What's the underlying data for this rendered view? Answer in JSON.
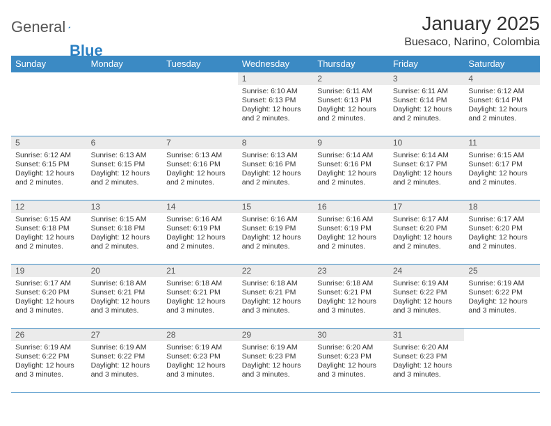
{
  "logo": {
    "general": "General",
    "blue": "Blue"
  },
  "title": "January 2025",
  "location": "Buesaco, Narino, Colombia",
  "colors": {
    "header_bg": "#3b8ac4",
    "header_text": "#ffffff",
    "daynum_bg": "#ebebeb",
    "border": "#3b8ac4",
    "text": "#333333",
    "logo_blue": "#2a7fc2"
  },
  "weekdays": [
    "Sunday",
    "Monday",
    "Tuesday",
    "Wednesday",
    "Thursday",
    "Friday",
    "Saturday"
  ],
  "weeks": [
    [
      null,
      null,
      null,
      {
        "d": "1",
        "sr": "Sunrise: 6:10 AM",
        "ss": "Sunset: 6:13 PM",
        "dl1": "Daylight: 12 hours",
        "dl2": "and 2 minutes."
      },
      {
        "d": "2",
        "sr": "Sunrise: 6:11 AM",
        "ss": "Sunset: 6:13 PM",
        "dl1": "Daylight: 12 hours",
        "dl2": "and 2 minutes."
      },
      {
        "d": "3",
        "sr": "Sunrise: 6:11 AM",
        "ss": "Sunset: 6:14 PM",
        "dl1": "Daylight: 12 hours",
        "dl2": "and 2 minutes."
      },
      {
        "d": "4",
        "sr": "Sunrise: 6:12 AM",
        "ss": "Sunset: 6:14 PM",
        "dl1": "Daylight: 12 hours",
        "dl2": "and 2 minutes."
      }
    ],
    [
      {
        "d": "5",
        "sr": "Sunrise: 6:12 AM",
        "ss": "Sunset: 6:15 PM",
        "dl1": "Daylight: 12 hours",
        "dl2": "and 2 minutes."
      },
      {
        "d": "6",
        "sr": "Sunrise: 6:13 AM",
        "ss": "Sunset: 6:15 PM",
        "dl1": "Daylight: 12 hours",
        "dl2": "and 2 minutes."
      },
      {
        "d": "7",
        "sr": "Sunrise: 6:13 AM",
        "ss": "Sunset: 6:16 PM",
        "dl1": "Daylight: 12 hours",
        "dl2": "and 2 minutes."
      },
      {
        "d": "8",
        "sr": "Sunrise: 6:13 AM",
        "ss": "Sunset: 6:16 PM",
        "dl1": "Daylight: 12 hours",
        "dl2": "and 2 minutes."
      },
      {
        "d": "9",
        "sr": "Sunrise: 6:14 AM",
        "ss": "Sunset: 6:16 PM",
        "dl1": "Daylight: 12 hours",
        "dl2": "and 2 minutes."
      },
      {
        "d": "10",
        "sr": "Sunrise: 6:14 AM",
        "ss": "Sunset: 6:17 PM",
        "dl1": "Daylight: 12 hours",
        "dl2": "and 2 minutes."
      },
      {
        "d": "11",
        "sr": "Sunrise: 6:15 AM",
        "ss": "Sunset: 6:17 PM",
        "dl1": "Daylight: 12 hours",
        "dl2": "and 2 minutes."
      }
    ],
    [
      {
        "d": "12",
        "sr": "Sunrise: 6:15 AM",
        "ss": "Sunset: 6:18 PM",
        "dl1": "Daylight: 12 hours",
        "dl2": "and 2 minutes."
      },
      {
        "d": "13",
        "sr": "Sunrise: 6:15 AM",
        "ss": "Sunset: 6:18 PM",
        "dl1": "Daylight: 12 hours",
        "dl2": "and 2 minutes."
      },
      {
        "d": "14",
        "sr": "Sunrise: 6:16 AM",
        "ss": "Sunset: 6:19 PM",
        "dl1": "Daylight: 12 hours",
        "dl2": "and 2 minutes."
      },
      {
        "d": "15",
        "sr": "Sunrise: 6:16 AM",
        "ss": "Sunset: 6:19 PM",
        "dl1": "Daylight: 12 hours",
        "dl2": "and 2 minutes."
      },
      {
        "d": "16",
        "sr": "Sunrise: 6:16 AM",
        "ss": "Sunset: 6:19 PM",
        "dl1": "Daylight: 12 hours",
        "dl2": "and 2 minutes."
      },
      {
        "d": "17",
        "sr": "Sunrise: 6:17 AM",
        "ss": "Sunset: 6:20 PM",
        "dl1": "Daylight: 12 hours",
        "dl2": "and 2 minutes."
      },
      {
        "d": "18",
        "sr": "Sunrise: 6:17 AM",
        "ss": "Sunset: 6:20 PM",
        "dl1": "Daylight: 12 hours",
        "dl2": "and 2 minutes."
      }
    ],
    [
      {
        "d": "19",
        "sr": "Sunrise: 6:17 AM",
        "ss": "Sunset: 6:20 PM",
        "dl1": "Daylight: 12 hours",
        "dl2": "and 3 minutes."
      },
      {
        "d": "20",
        "sr": "Sunrise: 6:18 AM",
        "ss": "Sunset: 6:21 PM",
        "dl1": "Daylight: 12 hours",
        "dl2": "and 3 minutes."
      },
      {
        "d": "21",
        "sr": "Sunrise: 6:18 AM",
        "ss": "Sunset: 6:21 PM",
        "dl1": "Daylight: 12 hours",
        "dl2": "and 3 minutes."
      },
      {
        "d": "22",
        "sr": "Sunrise: 6:18 AM",
        "ss": "Sunset: 6:21 PM",
        "dl1": "Daylight: 12 hours",
        "dl2": "and 3 minutes."
      },
      {
        "d": "23",
        "sr": "Sunrise: 6:18 AM",
        "ss": "Sunset: 6:21 PM",
        "dl1": "Daylight: 12 hours",
        "dl2": "and 3 minutes."
      },
      {
        "d": "24",
        "sr": "Sunrise: 6:19 AM",
        "ss": "Sunset: 6:22 PM",
        "dl1": "Daylight: 12 hours",
        "dl2": "and 3 minutes."
      },
      {
        "d": "25",
        "sr": "Sunrise: 6:19 AM",
        "ss": "Sunset: 6:22 PM",
        "dl1": "Daylight: 12 hours",
        "dl2": "and 3 minutes."
      }
    ],
    [
      {
        "d": "26",
        "sr": "Sunrise: 6:19 AM",
        "ss": "Sunset: 6:22 PM",
        "dl1": "Daylight: 12 hours",
        "dl2": "and 3 minutes."
      },
      {
        "d": "27",
        "sr": "Sunrise: 6:19 AM",
        "ss": "Sunset: 6:22 PM",
        "dl1": "Daylight: 12 hours",
        "dl2": "and 3 minutes."
      },
      {
        "d": "28",
        "sr": "Sunrise: 6:19 AM",
        "ss": "Sunset: 6:23 PM",
        "dl1": "Daylight: 12 hours",
        "dl2": "and 3 minutes."
      },
      {
        "d": "29",
        "sr": "Sunrise: 6:19 AM",
        "ss": "Sunset: 6:23 PM",
        "dl1": "Daylight: 12 hours",
        "dl2": "and 3 minutes."
      },
      {
        "d": "30",
        "sr": "Sunrise: 6:20 AM",
        "ss": "Sunset: 6:23 PM",
        "dl1": "Daylight: 12 hours",
        "dl2": "and 3 minutes."
      },
      {
        "d": "31",
        "sr": "Sunrise: 6:20 AM",
        "ss": "Sunset: 6:23 PM",
        "dl1": "Daylight: 12 hours",
        "dl2": "and 3 minutes."
      },
      null
    ]
  ]
}
